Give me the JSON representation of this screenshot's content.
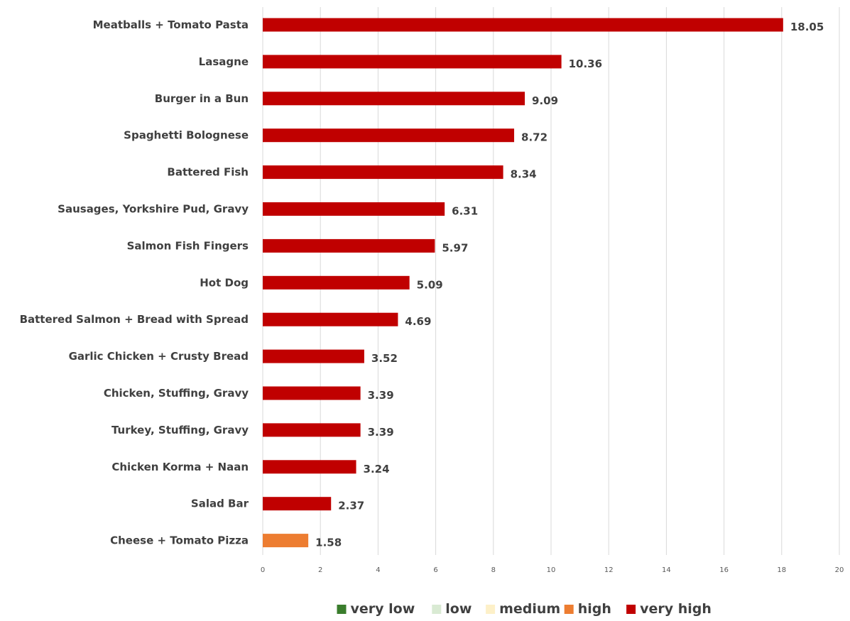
{
  "chart_data": {
    "type": "bar",
    "orientation": "horizontal",
    "categories": [
      "Meatballs + Tomato Pasta",
      "Lasagne",
      "Burger in a Bun",
      "Spaghetti Bolognese",
      "Battered Fish",
      "Sausages, Yorkshire Pud, Gravy",
      "Salmon Fish Fingers",
      "Hot Dog",
      "Battered Salmon + Bread with Spread",
      "Garlic Chicken + Crusty Bread",
      "Chicken, Stuffing, Gravy",
      "Turkey, Stuffing, Gravy",
      "Chicken Korma + Naan",
      "Salad Bar",
      "Cheese + Tomato Pizza"
    ],
    "values": [
      18.05,
      10.36,
      9.09,
      8.72,
      8.34,
      6.31,
      5.97,
      5.09,
      4.69,
      3.52,
      3.39,
      3.39,
      3.24,
      2.37,
      1.58
    ],
    "value_labels": [
      "18.05",
      "10.36",
      "9.09",
      "8.72",
      "8.34",
      "6.31",
      "5.97",
      "5.09",
      "4.69",
      "3.52",
      "3.39",
      "3.39",
      "3.24",
      "2.37",
      "1.58"
    ],
    "bar_levels": [
      "very high",
      "very high",
      "very high",
      "very high",
      "very high",
      "very high",
      "very high",
      "very high",
      "very high",
      "very high",
      "very high",
      "very high",
      "very high",
      "very high",
      "high"
    ],
    "xlim": [
      0,
      20
    ],
    "x_ticks": [
      "0",
      "2",
      "4",
      "6",
      "8",
      "10",
      "12",
      "14",
      "16",
      "18",
      "20"
    ],
    "grid": "vertical gridlines",
    "legend_position": "bottom",
    "legend": [
      {
        "label": "very low",
        "color": "#3a7d2c"
      },
      {
        "label": "low",
        "color": "#d9ead3"
      },
      {
        "label": "medium",
        "color": "#fdf0c8"
      },
      {
        "label": "high",
        "color": "#ed7d31"
      },
      {
        "label": "very high",
        "color": "#c00000"
      }
    ],
    "title": "",
    "xlabel": "",
    "ylabel": ""
  }
}
